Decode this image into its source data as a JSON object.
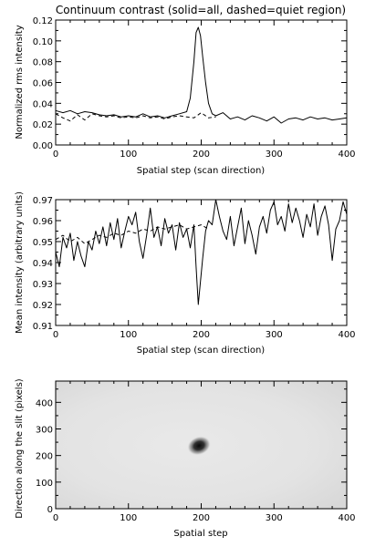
{
  "chart_data": [
    {
      "type": "line",
      "title": "Continuum contrast (solid=all, dashed=quiet region)",
      "xlabel": "Spatial step (scan direction)",
      "ylabel": "Normalized rms intensity",
      "xlim": [
        0,
        400
      ],
      "ylim": [
        0.0,
        0.12
      ],
      "xticks": [
        "0",
        "100",
        "200",
        "300",
        "400"
      ],
      "yticks": [
        "0.00",
        "0.02",
        "0.04",
        "0.06",
        "0.08",
        "0.10",
        "0.12"
      ],
      "series": [
        {
          "name": "all",
          "style": "solid",
          "x": [
            0,
            10,
            20,
            30,
            40,
            50,
            60,
            70,
            80,
            90,
            100,
            110,
            120,
            130,
            140,
            150,
            160,
            170,
            180,
            185,
            190,
            193,
            196,
            199,
            202,
            206,
            210,
            215,
            220,
            230,
            240,
            250,
            260,
            270,
            280,
            290,
            300,
            310,
            320,
            330,
            340,
            350,
            360,
            370,
            380,
            390,
            400
          ],
          "values": [
            0.033,
            0.031,
            0.033,
            0.03,
            0.032,
            0.031,
            0.029,
            0.028,
            0.029,
            0.027,
            0.028,
            0.027,
            0.03,
            0.027,
            0.028,
            0.026,
            0.028,
            0.03,
            0.032,
            0.045,
            0.08,
            0.108,
            0.113,
            0.105,
            0.085,
            0.06,
            0.04,
            0.03,
            0.028,
            0.031,
            0.025,
            0.027,
            0.024,
            0.028,
            0.026,
            0.023,
            0.027,
            0.021,
            0.025,
            0.026,
            0.024,
            0.027,
            0.025,
            0.026,
            0.024,
            0.025,
            0.026
          ]
        },
        {
          "name": "quiet region",
          "style": "dashed",
          "x": [
            0,
            10,
            20,
            30,
            40,
            50,
            60,
            70,
            80,
            90,
            100,
            110,
            120,
            130,
            140,
            150,
            160,
            170,
            180,
            190,
            200,
            210,
            220
          ],
          "values": [
            0.03,
            0.026,
            0.023,
            0.029,
            0.024,
            0.03,
            0.028,
            0.027,
            0.028,
            0.026,
            0.027,
            0.026,
            0.028,
            0.026,
            0.027,
            0.025,
            0.027,
            0.028,
            0.027,
            0.026,
            0.031,
            0.026,
            0.027
          ]
        }
      ]
    },
    {
      "type": "line",
      "title": "",
      "xlabel": "Spatial step (scan direction)",
      "ylabel": "Mean intensity (arbitrary units)",
      "xlim": [
        0,
        400
      ],
      "ylim": [
        0.91,
        0.97
      ],
      "xticks": [
        "0",
        "100",
        "200",
        "300",
        "400"
      ],
      "yticks": [
        "0.91",
        "0.92",
        "0.93",
        "0.94",
        "0.95",
        "0.96",
        "0.97"
      ],
      "series": [
        {
          "name": "all",
          "style": "solid",
          "x": [
            0,
            5,
            10,
            15,
            20,
            25,
            30,
            35,
            40,
            45,
            50,
            55,
            60,
            65,
            70,
            75,
            80,
            85,
            90,
            95,
            100,
            105,
            110,
            115,
            120,
            125,
            130,
            135,
            140,
            145,
            150,
            155,
            160,
            165,
            170,
            175,
            180,
            185,
            190,
            193,
            196,
            199,
            202,
            206,
            210,
            215,
            220,
            225,
            230,
            235,
            240,
            245,
            250,
            255,
            260,
            265,
            270,
            275,
            280,
            285,
            290,
            295,
            300,
            305,
            310,
            315,
            320,
            325,
            330,
            335,
            340,
            345,
            350,
            355,
            360,
            365,
            370,
            375,
            380,
            385,
            390,
            395,
            400
          ],
          "values": [
            0.945,
            0.938,
            0.952,
            0.947,
            0.954,
            0.941,
            0.95,
            0.943,
            0.938,
            0.95,
            0.946,
            0.955,
            0.949,
            0.957,
            0.948,
            0.959,
            0.951,
            0.961,
            0.947,
            0.955,
            0.962,
            0.958,
            0.964,
            0.95,
            0.942,
            0.953,
            0.966,
            0.952,
            0.957,
            0.948,
            0.961,
            0.954,
            0.958,
            0.946,
            0.959,
            0.952,
            0.956,
            0.947,
            0.958,
            0.938,
            0.92,
            0.931,
            0.942,
            0.955,
            0.96,
            0.958,
            0.97,
            0.962,
            0.955,
            0.951,
            0.962,
            0.948,
            0.957,
            0.966,
            0.949,
            0.96,
            0.953,
            0.944,
            0.957,
            0.962,
            0.954,
            0.965,
            0.969,
            0.958,
            0.962,
            0.955,
            0.968,
            0.959,
            0.966,
            0.96,
            0.952,
            0.963,
            0.957,
            0.968,
            0.953,
            0.962,
            0.967,
            0.958,
            0.941,
            0.956,
            0.96,
            0.969,
            0.963
          ]
        },
        {
          "name": "quiet region",
          "style": "dashed",
          "x": [
            0,
            10,
            20,
            30,
            40,
            50,
            60,
            70,
            80,
            90,
            100,
            110,
            120,
            130,
            140,
            150,
            160,
            170,
            180,
            190,
            200,
            210
          ],
          "values": [
            0.951,
            0.953,
            0.95,
            0.952,
            0.949,
            0.951,
            0.953,
            0.952,
            0.954,
            0.953,
            0.955,
            0.954,
            0.956,
            0.955,
            0.957,
            0.956,
            0.957,
            0.958,
            0.956,
            0.957,
            0.958,
            0.956
          ]
        }
      ]
    },
    {
      "type": "heatmap",
      "title": "",
      "xlabel": "Spatial step",
      "ylabel": "Direction along the slit (pixels)",
      "xlim": [
        0,
        400
      ],
      "ylim": [
        0,
        480
      ],
      "xticks": [
        "0",
        "100",
        "200",
        "300",
        "400"
      ],
      "yticks": [
        "0",
        "100",
        "200",
        "300",
        "400"
      ],
      "colormap": "grayscale",
      "features": [
        {
          "x": 197,
          "y": 237,
          "intensity": "dark"
        }
      ]
    }
  ]
}
